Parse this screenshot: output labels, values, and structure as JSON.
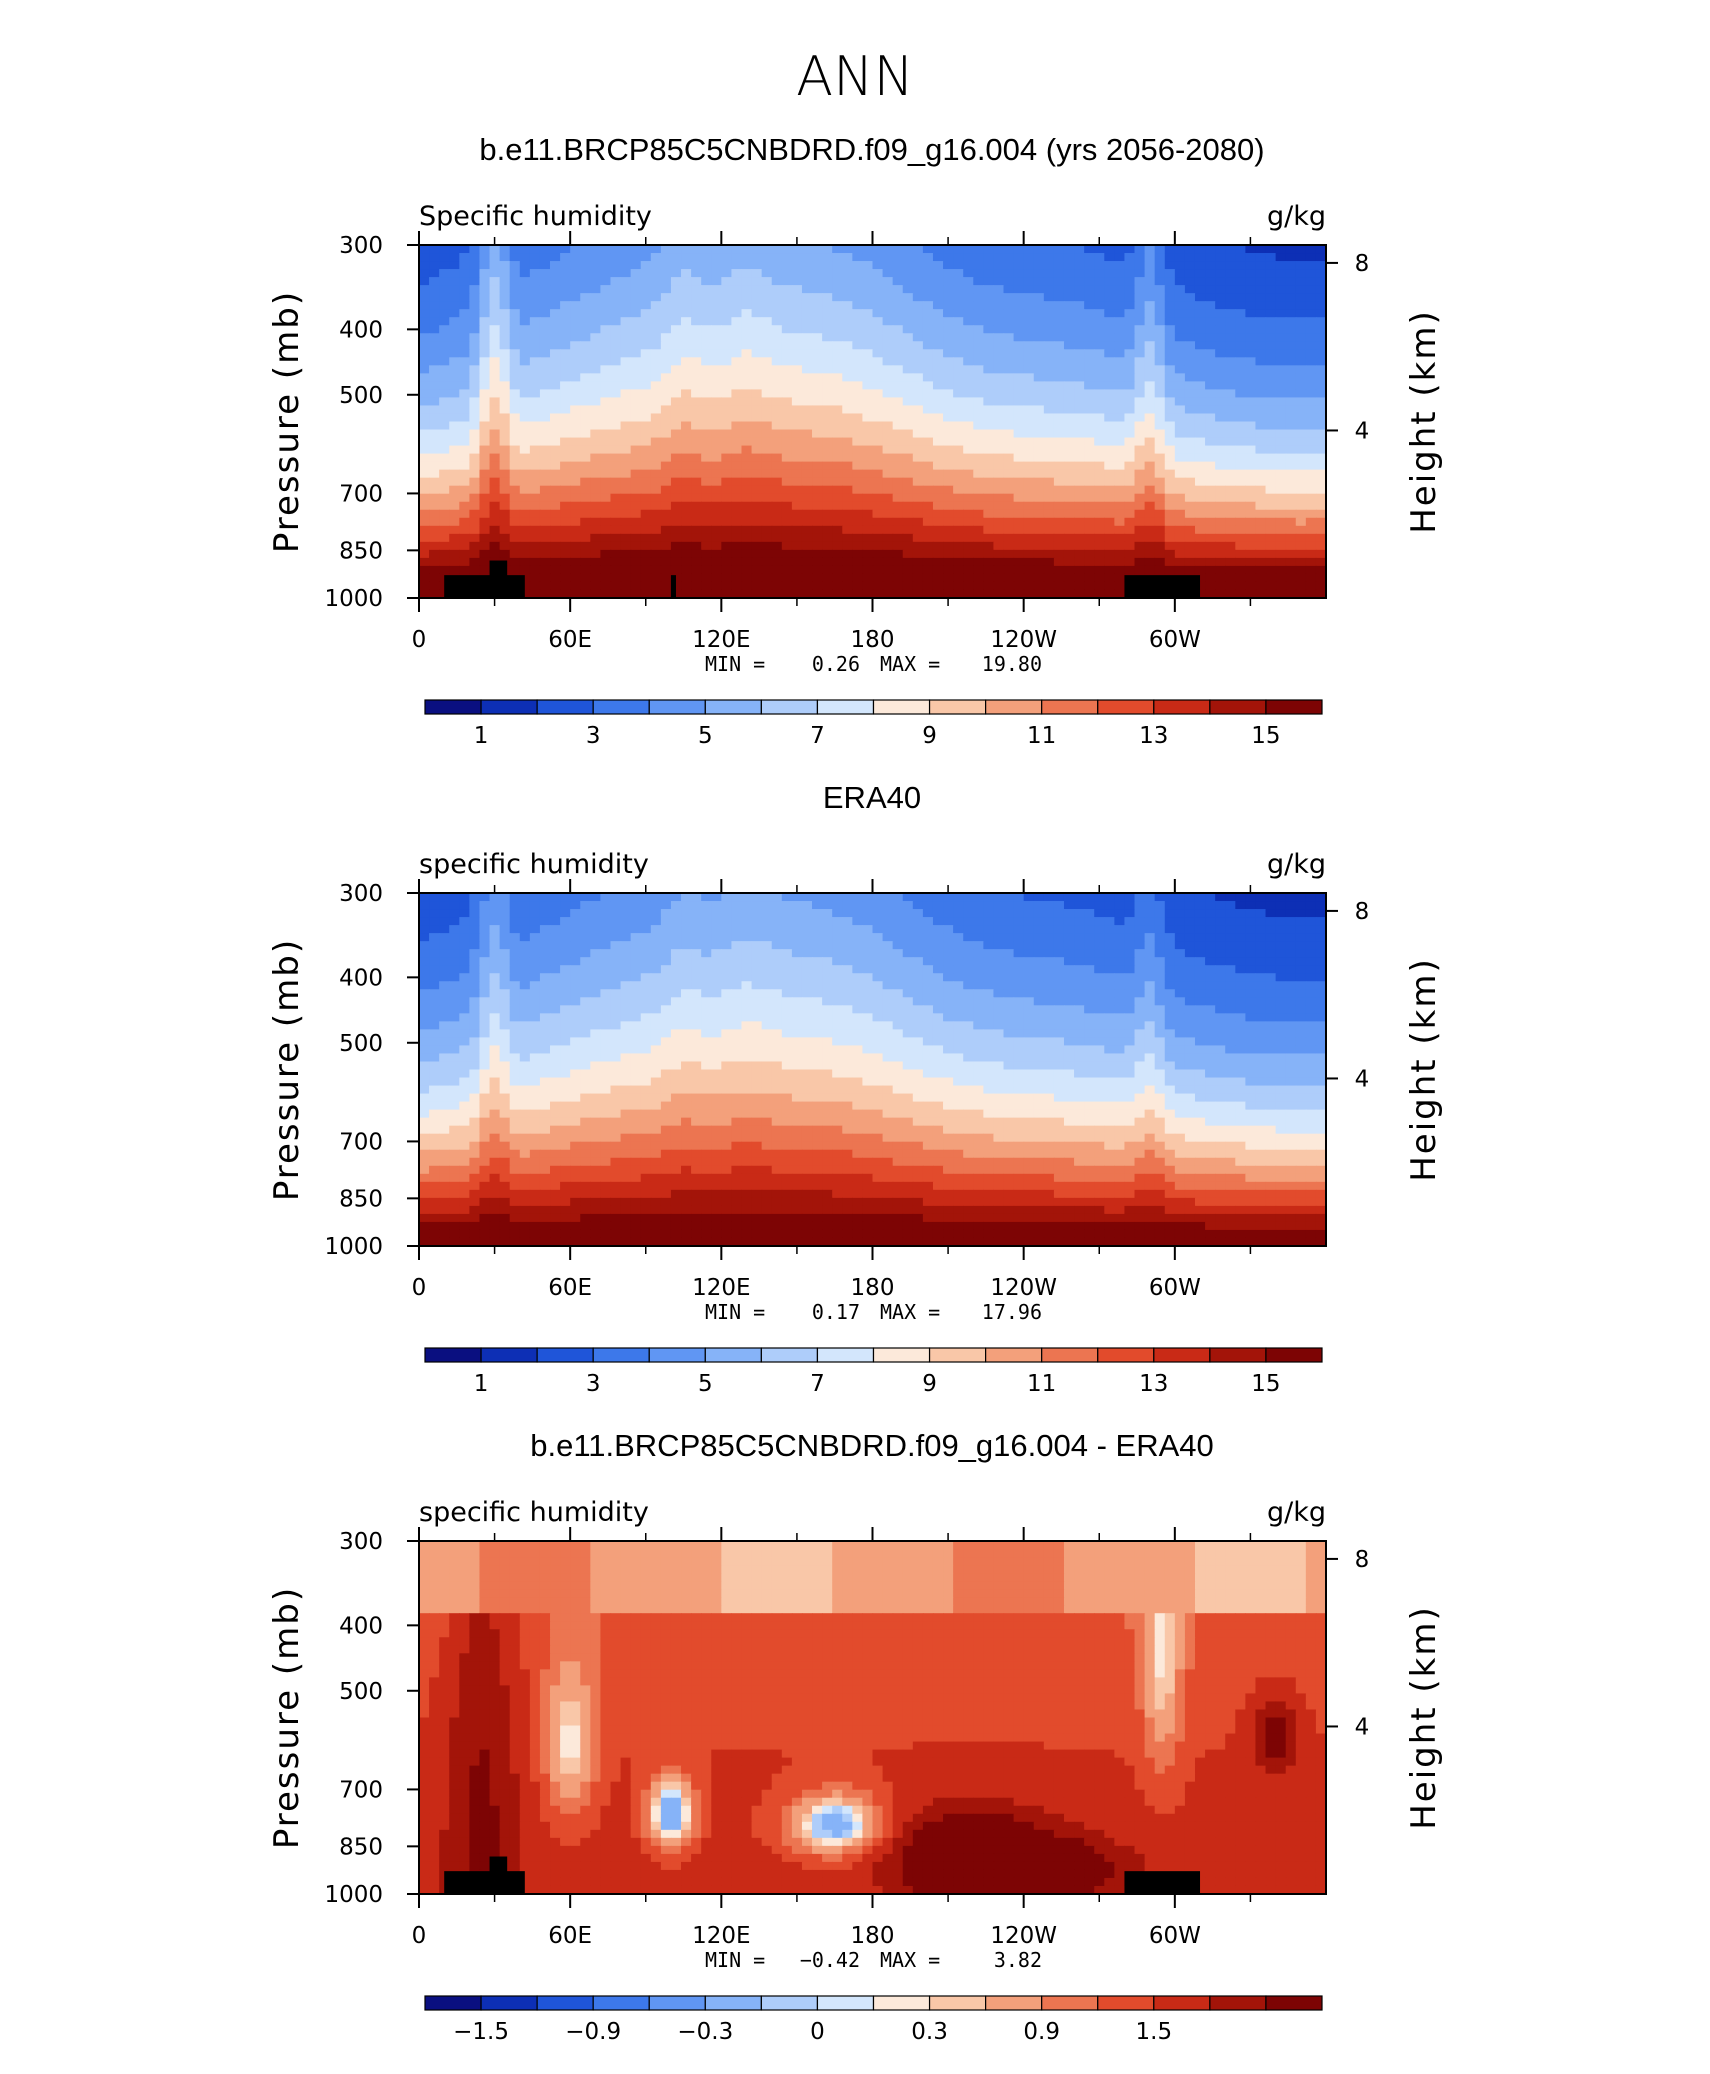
{
  "page": {
    "title": "ANN"
  },
  "chart_data": [
    {
      "type": "heatmap",
      "id": "model",
      "title": "b.e11.BRCP85C5CNBDRD.f09_g16.004 (yrs 2056-2080)",
      "left_label": "Specific humidity",
      "right_label": "g/kg",
      "ylabel": "Pressure (mb)",
      "ylabel_right": "Height (km)",
      "xticks": [
        "0",
        "60E",
        "120E",
        "180",
        "120W",
        "60W"
      ],
      "yticks": [
        "300",
        "400",
        "500",
        "700",
        "850",
        "1000"
      ],
      "yticks_right": [
        "8",
        "4"
      ],
      "ylim": [
        1000,
        300
      ],
      "min_label": "MIN =",
      "min_value": "0.26",
      "max_label": "MAX =",
      "max_value": "19.80",
      "min": 0.26,
      "max": 19.8,
      "colorbar_labels": [
        "1",
        "3",
        "5",
        "7",
        "9",
        "11",
        "13",
        "15"
      ]
    },
    {
      "type": "heatmap",
      "id": "era40",
      "title": "ERA40",
      "left_label": "specific humidity",
      "right_label": "g/kg",
      "ylabel": "Pressure (mb)",
      "ylabel_right": "Height (km)",
      "xticks": [
        "0",
        "60E",
        "120E",
        "180",
        "120W",
        "60W"
      ],
      "yticks": [
        "300",
        "400",
        "500",
        "700",
        "850",
        "1000"
      ],
      "yticks_right": [
        "8",
        "4"
      ],
      "ylim": [
        1000,
        300
      ],
      "min_label": "MIN =",
      "min_value": "0.17",
      "max_label": "MAX =",
      "max_value": "17.96",
      "min": 0.17,
      "max": 17.96,
      "colorbar_labels": [
        "1",
        "3",
        "5",
        "7",
        "9",
        "11",
        "13",
        "15"
      ]
    },
    {
      "type": "heatmap",
      "id": "diff",
      "title": "b.e11.BRCP85C5CNBDRD.f09_g16.004 - ERA40",
      "left_label": "specific humidity",
      "right_label": "g/kg",
      "ylabel": "Pressure (mb)",
      "ylabel_right": "Height (km)",
      "xticks": [
        "0",
        "60E",
        "120E",
        "180",
        "120W",
        "60W"
      ],
      "yticks": [
        "300",
        "400",
        "500",
        "700",
        "850",
        "1000"
      ],
      "yticks_right": [
        "8",
        "4"
      ],
      "ylim": [
        1000,
        300
      ],
      "min_label": "MIN =",
      "min_value": "−0.42",
      "max_label": "MAX =",
      "max_value": "3.82",
      "min": -0.42,
      "max": 3.82,
      "colorbar_labels": [
        "−1.5",
        "−0.9",
        "−0.3",
        "0",
        "0.3",
        "0.9",
        "1.5"
      ]
    }
  ],
  "palette": [
    "#0a0f80",
    "#0d2fb5",
    "#1f55d9",
    "#3d78ea",
    "#6096f3",
    "#86b3f8",
    "#aecdfa",
    "#d3e6fc",
    "#fce9da",
    "#f9c7a8",
    "#f3a07b",
    "#ec7551",
    "#e24b2c",
    "#c92a16",
    "#a31409",
    "#7d0404"
  ]
}
